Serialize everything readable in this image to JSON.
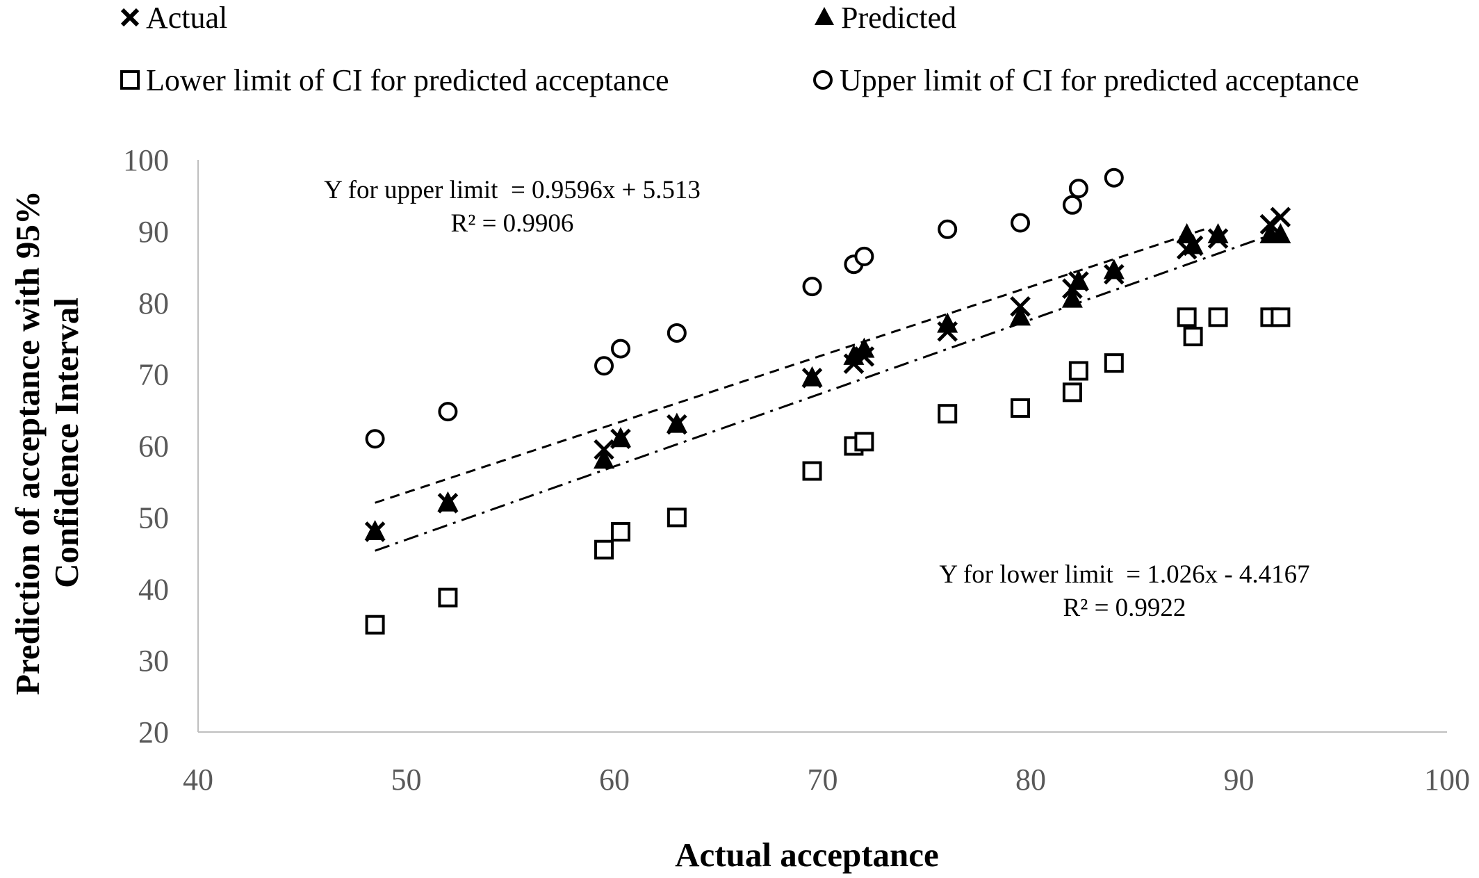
{
  "chart_data": {
    "type": "scatter",
    "xlabel": "Actual acceptance",
    "ylabel_lines": [
      "Prediction of acceptance with 95%",
      "Confidence Interval"
    ],
    "xlim": [
      40,
      100
    ],
    "ylim": [
      20,
      100
    ],
    "x_ticks": [
      "40",
      "50",
      "60",
      "70",
      "80",
      "90",
      "100"
    ],
    "y_ticks": [
      "20",
      "30",
      "40",
      "50",
      "60",
      "70",
      "80",
      "90",
      "100"
    ],
    "grid": false,
    "legend_position": "top",
    "series": [
      {
        "name": "Actual",
        "marker": "x",
        "points": [
          [
            48.5,
            48
          ],
          [
            52,
            52
          ],
          [
            59.5,
            59.5
          ],
          [
            60.3,
            61
          ],
          [
            63,
            63
          ],
          [
            69.5,
            69.5
          ],
          [
            71.5,
            71.5
          ],
          [
            72,
            72.5
          ],
          [
            76,
            76
          ],
          [
            79.5,
            79.5
          ],
          [
            82,
            82
          ],
          [
            82.3,
            83
          ],
          [
            84,
            84
          ],
          [
            87.5,
            87.5
          ],
          [
            87.8,
            88
          ],
          [
            89,
            89
          ],
          [
            91.5,
            91
          ],
          [
            92,
            92
          ]
        ]
      },
      {
        "name": "Predicted",
        "marker": "triangle",
        "points": [
          [
            48.5,
            48
          ],
          [
            52,
            52
          ],
          [
            59.5,
            58
          ],
          [
            60.3,
            61
          ],
          [
            63,
            63
          ],
          [
            69.5,
            69.5
          ],
          [
            71.5,
            72.5
          ],
          [
            72,
            73.5
          ],
          [
            76,
            77
          ],
          [
            79.5,
            78
          ],
          [
            82,
            80.5
          ],
          [
            82.3,
            83
          ],
          [
            84,
            84.5
          ],
          [
            87.5,
            89.5
          ],
          [
            87.8,
            88
          ],
          [
            89,
            89.5
          ],
          [
            91.5,
            89.5
          ],
          [
            92,
            89.5
          ]
        ]
      },
      {
        "name": "Lower limit of CI for predicted acceptance",
        "marker": "square",
        "points": [
          [
            48.5,
            35
          ],
          [
            52,
            38.8
          ],
          [
            59.5,
            45.5
          ],
          [
            60.3,
            48
          ],
          [
            63,
            50
          ],
          [
            69.5,
            56.5
          ],
          [
            71.5,
            60
          ],
          [
            72,
            60.6
          ],
          [
            76,
            64.5
          ],
          [
            79.5,
            65.3
          ],
          [
            82,
            67.5
          ],
          [
            82.3,
            70.5
          ],
          [
            84,
            71.6
          ],
          [
            87.5,
            78
          ],
          [
            87.8,
            75.3
          ],
          [
            89,
            78
          ],
          [
            91.5,
            78
          ],
          [
            92,
            78
          ]
        ]
      },
      {
        "name": "Upper limit of CI for predicted acceptance",
        "marker": "circle",
        "points": [
          [
            48.5,
            61
          ],
          [
            52,
            64.8
          ],
          [
            59.5,
            71.2
          ],
          [
            60.3,
            73.6
          ],
          [
            63,
            75.8
          ],
          [
            69.5,
            82.3
          ],
          [
            71.5,
            85.4
          ],
          [
            72,
            86.5
          ],
          [
            76,
            90.3
          ],
          [
            79.5,
            91.2
          ],
          [
            82,
            93.7
          ],
          [
            82.3,
            96
          ],
          [
            84,
            97.5
          ]
        ]
      }
    ],
    "trendlines": [
      {
        "series": "Upper limit of CI for predicted acceptance",
        "style": "dashed",
        "slope": 0.9596,
        "intercept": 5.513,
        "x_range": [
          48.5,
          88.5
        ],
        "equation": "Y for upper limit  = 0.9596x + 5.513",
        "r2": "R² = 0.9906"
      },
      {
        "series": "Lower limit of CI for predicted acceptance",
        "style": "dash-dot",
        "slope": 1.026,
        "intercept": -4.4167,
        "x_range": [
          48.5,
          92
        ],
        "equation": "Y for lower limit  = 1.026x - 4.4167",
        "r2": "R² = 0.9922"
      }
    ]
  },
  "colors": {
    "axis": "#bfbfbf",
    "tick_text": "#595959",
    "marker": "#000000"
  }
}
